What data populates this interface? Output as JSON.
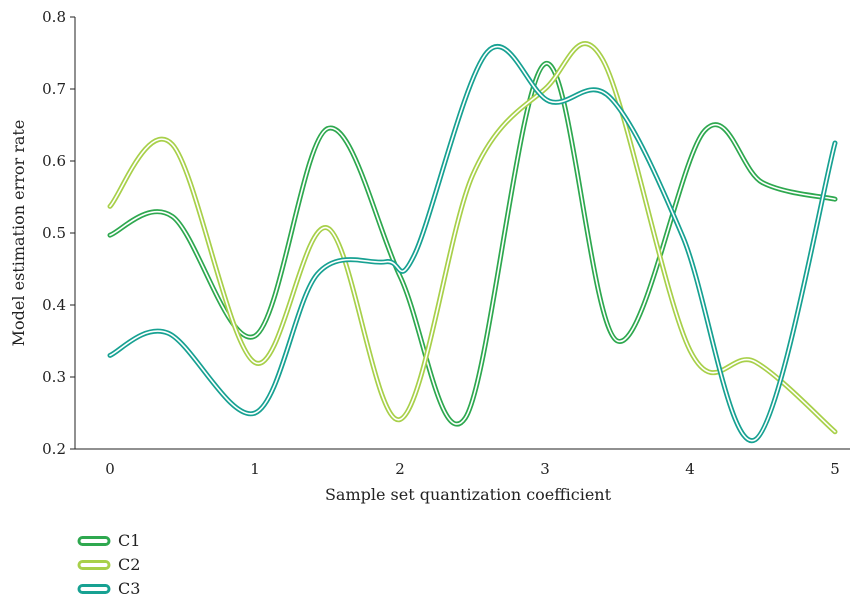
{
  "chart_data": {
    "type": "line",
    "xlabel": "Sample set quantization coefficient",
    "ylabel": "Model estimation error rate",
    "xlim": [
      0,
      5
    ],
    "ylim": [
      0.2,
      0.8
    ],
    "xticks": [
      "0",
      "1",
      "2",
      "3",
      "4",
      "5"
    ],
    "yticks": [
      "0.2",
      "0.3",
      "0.4",
      "0.5",
      "0.6",
      "0.7",
      "0.8"
    ],
    "grid": false,
    "legend_position": "bottom-left",
    "series": [
      {
        "name": "C1",
        "color": "#2ea84f",
        "x": [
          0,
          0.43,
          1,
          1.5,
          2,
          2.45,
          3,
          3.5,
          4.1,
          4.5,
          5
        ],
        "y": [
          0.497,
          0.523,
          0.357,
          0.645,
          0.44,
          0.243,
          0.735,
          0.35,
          0.642,
          0.57,
          0.547
        ]
      },
      {
        "name": "C2",
        "color": "#a8d04a",
        "x": [
          0,
          0.43,
          1,
          1.5,
          2,
          2.5,
          3,
          3.4,
          4,
          4.45,
          5
        ],
        "y": [
          0.537,
          0.623,
          0.32,
          0.507,
          0.241,
          0.58,
          0.7,
          0.74,
          0.337,
          0.321,
          0.224
        ]
      },
      {
        "name": "C3",
        "color": "#17a192",
        "x": [
          0,
          0.4,
          1,
          1.43,
          1.9,
          2.1,
          2.6,
          3.03,
          3.45,
          3.95,
          4.45,
          5
        ],
        "y": [
          0.33,
          0.361,
          0.25,
          0.443,
          0.46,
          0.47,
          0.751,
          0.683,
          0.688,
          0.495,
          0.213,
          0.625
        ]
      }
    ]
  }
}
